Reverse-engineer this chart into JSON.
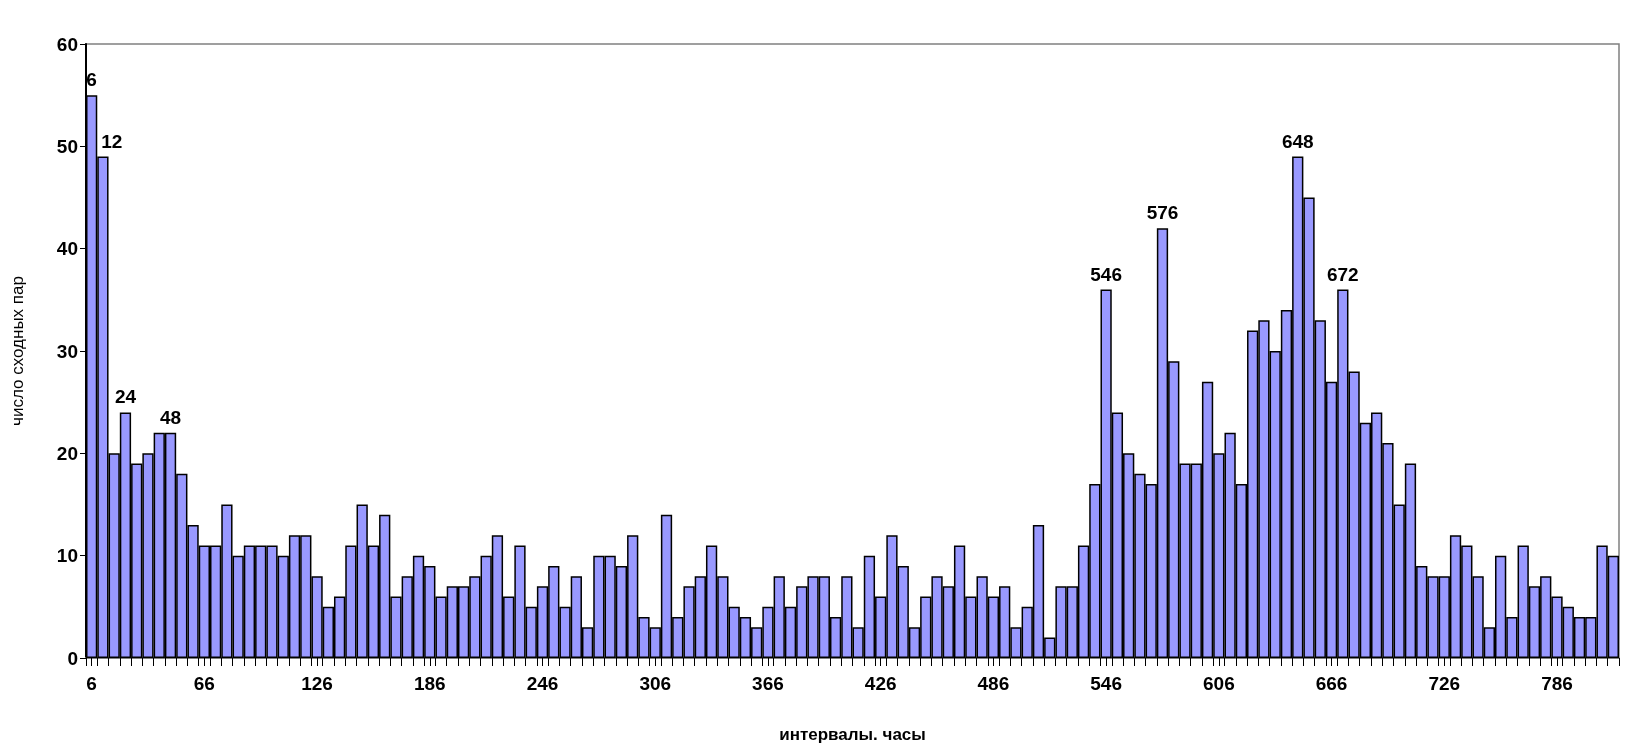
{
  "chart_data": {
    "type": "bar",
    "xlabel": "интервалы. часы",
    "ylabel": "число сходных пар",
    "x": [
      6,
      12,
      18,
      24,
      30,
      36,
      42,
      48,
      54,
      60,
      66,
      72,
      78,
      84,
      90,
      96,
      102,
      108,
      114,
      120,
      126,
      132,
      138,
      144,
      150,
      156,
      162,
      168,
      174,
      180,
      186,
      192,
      198,
      204,
      210,
      216,
      222,
      228,
      234,
      240,
      246,
      252,
      258,
      264,
      270,
      276,
      282,
      288,
      294,
      300,
      306,
      312,
      318,
      324,
      330,
      336,
      342,
      348,
      354,
      360,
      366,
      372,
      378,
      384,
      390,
      396,
      402,
      408,
      414,
      420,
      426,
      432,
      438,
      444,
      450,
      456,
      462,
      468,
      474,
      480,
      486,
      492,
      498,
      504,
      510,
      516,
      522,
      528,
      534,
      540,
      546,
      552,
      558,
      564,
      570,
      576,
      582,
      588,
      594,
      600,
      606,
      612,
      618,
      624,
      630,
      636,
      642,
      648,
      654,
      660,
      666,
      672,
      678,
      684,
      690,
      696,
      702,
      708,
      714,
      720,
      726,
      732,
      738,
      744,
      750,
      756,
      762,
      768,
      774,
      780,
      786,
      792,
      798,
      804,
      810,
      816
    ],
    "series": [
      {
        "color": "#9999ff",
        "values": [
          55,
          49,
          20,
          24,
          19,
          20,
          22,
          22,
          18,
          13,
          11,
          11,
          15,
          10,
          11,
          11,
          11,
          10,
          12,
          12,
          8,
          5,
          6,
          11,
          15,
          11,
          14,
          6,
          8,
          10,
          9,
          6,
          7,
          7,
          8,
          10,
          12,
          6,
          11,
          5,
          7,
          9,
          5,
          8,
          3,
          10,
          10,
          9,
          12,
          4,
          3,
          14,
          4,
          7,
          8,
          11,
          8,
          5,
          4,
          3,
          5,
          8,
          5,
          7,
          8,
          8,
          4,
          8,
          3,
          10,
          6,
          12,
          9,
          3,
          6,
          8,
          7,
          11,
          6,
          8,
          6,
          7,
          3,
          5,
          13,
          2,
          7,
          7,
          11,
          17,
          36,
          24,
          20,
          18,
          17,
          42,
          29,
          19,
          19,
          27,
          20,
          22,
          17,
          32,
          33,
          30,
          34,
          49,
          45,
          33,
          27,
          36,
          28,
          23,
          24,
          21,
          15,
          19,
          9,
          8,
          8,
          12,
          11,
          8,
          3,
          10,
          4,
          11,
          7,
          8,
          6,
          5,
          4,
          4,
          11,
          10
        ]
      }
    ],
    "annotations": [
      {
        "text": "6",
        "x": 6,
        "y": 55
      },
      {
        "text": "12",
        "x": 12,
        "y": 49
      },
      {
        "text": "24",
        "x": 24,
        "y": 24
      },
      {
        "text": "48",
        "x": 48,
        "y": 22
      },
      {
        "text": "546",
        "x": 546,
        "y": 36
      },
      {
        "text": "576",
        "x": 576,
        "y": 42
      },
      {
        "text": "648",
        "x": 648,
        "y": 49
      },
      {
        "text": "672",
        "x": 672,
        "y": 36
      }
    ],
    "xlim": [
      3,
      819
    ],
    "xticks": [
      6,
      66,
      126,
      186,
      246,
      306,
      366,
      426,
      486,
      546,
      606,
      666,
      726,
      786,
      {
        "value": 3,
        "label": null
      },
      {
        "value": 9,
        "label": null
      },
      {
        "value": 15,
        "label": null
      },
      {
        "value": 21,
        "label": null
      },
      {
        "value": 27,
        "label": null
      },
      {
        "value": 33,
        "label": null
      },
      {
        "value": 39,
        "label": null
      },
      {
        "value": 45,
        "label": null
      },
      {
        "value": 51,
        "label": null
      },
      {
        "value": 57,
        "label": null
      },
      {
        "value": 63,
        "label": null
      },
      {
        "value": 69,
        "label": null
      },
      {
        "value": 75,
        "label": null
      },
      {
        "value": 81,
        "label": null
      },
      {
        "value": 87,
        "label": null
      },
      {
        "value": 93,
        "label": null
      },
      {
        "value": 99,
        "label": null
      },
      {
        "value": 105,
        "label": null
      },
      {
        "value": 111,
        "label": null
      },
      {
        "value": 117,
        "label": null
      },
      {
        "value": 123,
        "label": null
      },
      {
        "value": 129,
        "label": null
      },
      {
        "value": 135,
        "label": null
      },
      {
        "value": 141,
        "label": null
      },
      {
        "value": 147,
        "label": null
      },
      {
        "value": 153,
        "label": null
      },
      {
        "value": 159,
        "label": null
      },
      {
        "value": 165,
        "label": null
      },
      {
        "value": 171,
        "label": null
      },
      {
        "value": 177,
        "label": null
      },
      {
        "value": 183,
        "label": null
      },
      {
        "value": 189,
        "label": null
      },
      {
        "value": 195,
        "label": null
      },
      {
        "value": 201,
        "label": null
      },
      {
        "value": 207,
        "label": null
      },
      {
        "value": 213,
        "label": null
      },
      {
        "value": 219,
        "label": null
      },
      {
        "value": 225,
        "label": null
      },
      {
        "value": 231,
        "label": null
      },
      {
        "value": 237,
        "label": null
      },
      {
        "value": 243,
        "label": null
      },
      {
        "value": 249,
        "label": null
      },
      {
        "value": 255,
        "label": null
      },
      {
        "value": 261,
        "label": null
      },
      {
        "value": 267,
        "label": null
      },
      {
        "value": 273,
        "label": null
      },
      {
        "value": 279,
        "label": null
      },
      {
        "value": 285,
        "label": null
      },
      {
        "value": 291,
        "label": null
      },
      {
        "value": 297,
        "label": null
      },
      {
        "value": 303,
        "label": null
      },
      {
        "value": 309,
        "label": null
      },
      {
        "value": 315,
        "label": null
      },
      {
        "value": 321,
        "label": null
      },
      {
        "value": 327,
        "label": null
      },
      {
        "value": 333,
        "label": null
      },
      {
        "value": 339,
        "label": null
      },
      {
        "value": 345,
        "label": null
      },
      {
        "value": 351,
        "label": null
      },
      {
        "value": 357,
        "label": null
      },
      {
        "value": 363,
        "label": null
      },
      {
        "value": 369,
        "label": null
      },
      {
        "value": 375,
        "label": null
      },
      {
        "value": 381,
        "label": null
      },
      {
        "value": 387,
        "label": null
      },
      {
        "value": 393,
        "label": null
      },
      {
        "value": 399,
        "label": null
      },
      {
        "value": 405,
        "label": null
      },
      {
        "value": 411,
        "label": null
      },
      {
        "value": 417,
        "label": null
      },
      {
        "value": 423,
        "label": null
      },
      {
        "value": 429,
        "label": null
      },
      {
        "value": 435,
        "label": null
      },
      {
        "value": 441,
        "label": null
      },
      {
        "value": 447,
        "label": null
      },
      {
        "value": 453,
        "label": null
      },
      {
        "value": 459,
        "label": null
      },
      {
        "value": 465,
        "label": null
      },
      {
        "value": 471,
        "label": null
      },
      {
        "value": 477,
        "label": null
      },
      {
        "value": 483,
        "label": null
      },
      {
        "value": 489,
        "label": null
      },
      {
        "value": 495,
        "label": null
      },
      {
        "value": 501,
        "label": null
      },
      {
        "value": 507,
        "label": null
      },
      {
        "value": 513,
        "label": null
      },
      {
        "value": 519,
        "label": null
      },
      {
        "value": 525,
        "label": null
      },
      {
        "value": 531,
        "label": null
      },
      {
        "value": 537,
        "label": null
      },
      {
        "value": 543,
        "label": null
      },
      {
        "value": 549,
        "label": null
      },
      {
        "value": 555,
        "label": null
      },
      {
        "value": 561,
        "label": null
      },
      {
        "value": 567,
        "label": null
      },
      {
        "value": 573,
        "label": null
      },
      {
        "value": 579,
        "label": null
      },
      {
        "value": 585,
        "label": null
      },
      {
        "value": 591,
        "label": null
      },
      {
        "value": 597,
        "label": null
      },
      {
        "value": 603,
        "label": null
      },
      {
        "value": 609,
        "label": null
      },
      {
        "value": 615,
        "label": null
      },
      {
        "value": 621,
        "label": null
      },
      {
        "value": 627,
        "label": null
      },
      {
        "value": 633,
        "label": null
      },
      {
        "value": 639,
        "label": null
      },
      {
        "value": 645,
        "label": null
      },
      {
        "value": 651,
        "label": null
      },
      {
        "value": 657,
        "label": null
      },
      {
        "value": 663,
        "label": null
      },
      {
        "value": 669,
        "label": null
      },
      {
        "value": 675,
        "label": null
      },
      {
        "value": 681,
        "label": null
      },
      {
        "value": 687,
        "label": null
      },
      {
        "value": 693,
        "label": null
      },
      {
        "value": 699,
        "label": null
      },
      {
        "value": 705,
        "label": null
      },
      {
        "value": 711,
        "label": null
      },
      {
        "value": 717,
        "label": null
      },
      {
        "value": 723,
        "label": null
      },
      {
        "value": 729,
        "label": null
      },
      {
        "value": 735,
        "label": null
      },
      {
        "value": 741,
        "label": null
      },
      {
        "value": 747,
        "label": null
      },
      {
        "value": 753,
        "label": null
      },
      {
        "value": 759,
        "label": null
      },
      {
        "value": 765,
        "label": null
      },
      {
        "value": 771,
        "label": null
      },
      {
        "value": 777,
        "label": null
      },
      {
        "value": 783,
        "label": null
      },
      {
        "value": 789,
        "label": null
      },
      {
        "value": 795,
        "label": null
      },
      {
        "value": 801,
        "label": null
      },
      {
        "value": 807,
        "label": null
      },
      {
        "value": 813,
        "label": null
      },
      {
        "value": 819,
        "label": null
      }
    ],
    "ylim": [
      0,
      60
    ],
    "yticks": [
      0,
      10,
      20,
      30,
      40,
      50,
      60
    ]
  }
}
